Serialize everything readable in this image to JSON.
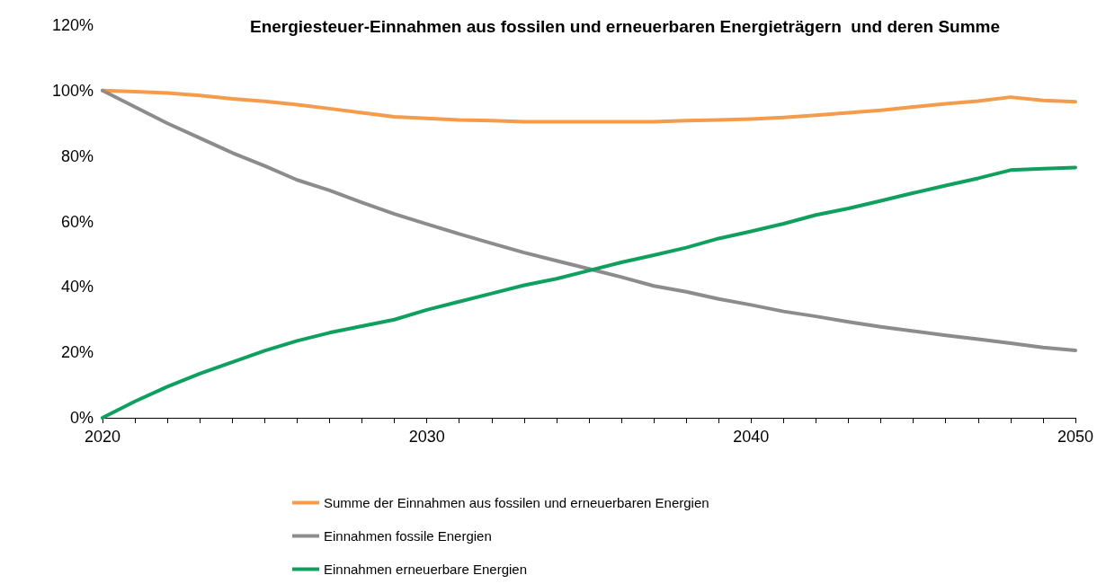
{
  "chart_data": {
    "type": "line",
    "title": "Energiesteuer-Einnahmen aus fossilen und erneuerbaren Energieträgern  und deren Summe",
    "x": [
      2020,
      2021,
      2022,
      2023,
      2024,
      2025,
      2026,
      2027,
      2028,
      2029,
      2030,
      2031,
      2032,
      2033,
      2034,
      2035,
      2036,
      2037,
      2038,
      2039,
      2040,
      2041,
      2042,
      2043,
      2044,
      2045,
      2046,
      2047,
      2048,
      2049,
      2050
    ],
    "series": [
      {
        "name": "Summe der Einnahmen aus fossilen und erneuerbaren Energien",
        "color": "#f59b4c",
        "values": [
          100,
          99.7,
          99.3,
          98.5,
          97.5,
          96.7,
          95.7,
          94.5,
          93.2,
          92,
          91.5,
          91,
          90.8,
          90.5,
          90.5,
          90.5,
          90.5,
          90.5,
          90.8,
          91,
          91.3,
          91.8,
          92.5,
          93.2,
          94,
          95,
          96,
          96.8,
          98,
          97,
          96.6
        ]
      },
      {
        "name": "Einnahmen fossile Energien",
        "color": "#8c8c8c",
        "values": [
          100,
          95,
          90,
          85.5,
          81,
          77,
          72.7,
          69.5,
          65.8,
          62.3,
          59.2,
          56.2,
          53.3,
          50.5,
          48,
          45.5,
          43,
          40.3,
          38.5,
          36.3,
          34.5,
          32.5,
          31,
          29.3,
          27.8,
          26.5,
          25.2,
          24,
          22.8,
          21.5,
          20.6
        ]
      },
      {
        "name": "Einnahmen erneuerbare Energien",
        "color": "#0fa060",
        "values": [
          0,
          5,
          9.5,
          13.5,
          17,
          20.5,
          23.5,
          26,
          28,
          30,
          33,
          35.5,
          38,
          40.5,
          42.5,
          45,
          47.5,
          49.7,
          52,
          54.8,
          57,
          59.3,
          62,
          64,
          66.3,
          68.7,
          71,
          73.2,
          75.7,
          76.1,
          76.5
        ]
      }
    ],
    "xlim": [
      2020,
      2050
    ],
    "xticks": [
      2020,
      {
        "value": 2021,
        "label": null
      },
      {
        "value": 2022,
        "label": null
      },
      {
        "value": 2023,
        "label": null
      },
      {
        "value": 2024,
        "label": null
      },
      {
        "value": 2025,
        "label": null
      },
      {
        "value": 2026,
        "label": null
      },
      {
        "value": 2027,
        "label": null
      },
      {
        "value": 2028,
        "label": null
      },
      {
        "value": 2029,
        "label": null
      },
      2030,
      {
        "value": 2031,
        "label": null
      },
      {
        "value": 2032,
        "label": null
      },
      {
        "value": 2033,
        "label": null
      },
      {
        "value": 2034,
        "label": null
      },
      {
        "value": 2035,
        "label": null
      },
      {
        "value": 2036,
        "label": null
      },
      {
        "value": 2037,
        "label": null
      },
      {
        "value": 2038,
        "label": null
      },
      {
        "value": 2039,
        "label": null
      },
      2040,
      {
        "value": 2041,
        "label": null
      },
      {
        "value": 2042,
        "label": null
      },
      {
        "value": 2043,
        "label": null
      },
      {
        "value": 2044,
        "label": null
      },
      {
        "value": 2045,
        "label": null
      },
      {
        "value": 2046,
        "label": null
      },
      {
        "value": 2047,
        "label": null
      },
      {
        "value": 2048,
        "label": null
      },
      {
        "value": 2049,
        "label": null
      },
      2050
    ],
    "ylim": [
      0,
      120
    ],
    "yticks": [
      {
        "value": 0,
        "label": "0%"
      },
      {
        "value": 20,
        "label": "20%"
      },
      {
        "value": 40,
        "label": "40%"
      },
      {
        "value": 60,
        "label": "60%"
      },
      {
        "value": 80,
        "label": "80%"
      },
      {
        "value": 100,
        "label": "100%"
      },
      {
        "value": 120,
        "label": "120%"
      }
    ],
    "grid": false,
    "legend": "bottom",
    "marker": "none",
    "line_style": "solid"
  }
}
